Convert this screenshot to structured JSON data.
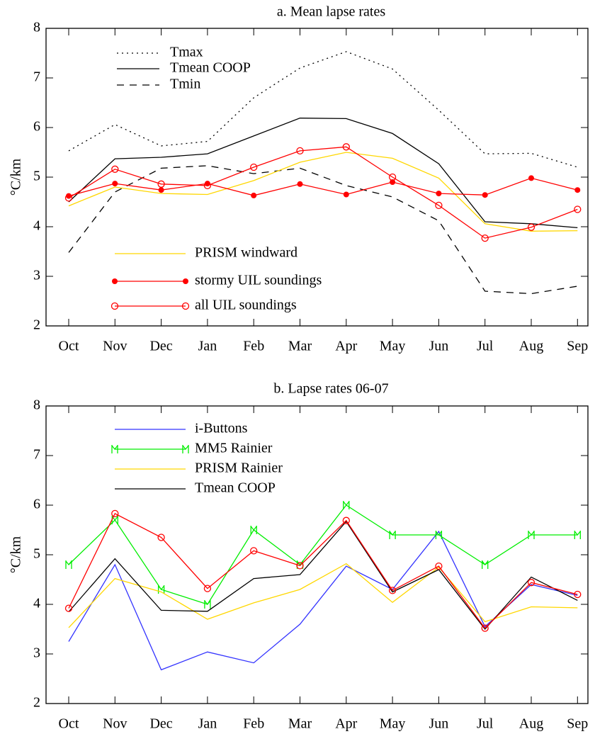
{
  "chart_data": [
    {
      "type": "line",
      "title": "a. Mean lapse rates",
      "ylabel": "°C/km",
      "categories": [
        "Oct",
        "Nov",
        "Dec",
        "Jan",
        "Feb",
        "Mar",
        "Apr",
        "May",
        "Jun",
        "Jul",
        "Aug",
        "Sep"
      ],
      "ylim": [
        2,
        8
      ],
      "yticks": [
        2,
        3,
        4,
        5,
        6,
        7,
        8
      ],
      "series": [
        {
          "name": "Tmax",
          "color": "#000000",
          "dash": "dotted",
          "values": [
            5.53,
            6.06,
            5.63,
            5.72,
            6.6,
            7.2,
            7.53,
            7.18,
            6.35,
            5.47,
            5.48,
            5.2
          ]
        },
        {
          "name": "Tmean COOP",
          "color": "#000000",
          "dash": "solid",
          "values": [
            4.5,
            5.37,
            5.4,
            5.47,
            5.83,
            6.19,
            6.18,
            5.88,
            5.27,
            4.1,
            4.06,
            3.98
          ]
        },
        {
          "name": "Tmin",
          "color": "#000000",
          "dash": "dashed",
          "values": [
            3.48,
            4.7,
            5.18,
            5.23,
            5.07,
            5.18,
            4.83,
            4.6,
            4.12,
            2.7,
            2.65,
            2.8
          ]
        },
        {
          "name": "PRISM windward",
          "color": "#ffd700",
          "dash": "solid",
          "values": [
            4.42,
            4.8,
            4.67,
            4.65,
            4.93,
            5.3,
            5.5,
            5.38,
            4.98,
            4.06,
            3.91,
            3.92
          ]
        },
        {
          "name": "stormy UIL soundings",
          "color": "#ff0000",
          "dash": "solid",
          "marker": "filled-circle",
          "values": [
            4.62,
            4.87,
            4.74,
            4.87,
            4.63,
            4.86,
            4.65,
            4.9,
            4.67,
            4.64,
            4.98,
            4.74
          ]
        },
        {
          "name": "all UIL soundings",
          "color": "#ff0000",
          "dash": "solid",
          "marker": "open-circle",
          "values": [
            4.58,
            5.16,
            4.86,
            4.83,
            5.2,
            5.53,
            5.61,
            5.0,
            4.43,
            3.77,
            3.99,
            4.35
          ]
        }
      ]
    },
    {
      "type": "line",
      "title": "b. Lapse rates 06-07",
      "ylabel": "°C/km",
      "categories": [
        "Oct",
        "Nov",
        "Dec",
        "Jan",
        "Feb",
        "Mar",
        "Apr",
        "May",
        "Jun",
        "Jul",
        "Aug",
        "Sep"
      ],
      "ylim": [
        2,
        8
      ],
      "yticks": [
        2,
        3,
        4,
        5,
        6,
        7,
        8
      ],
      "series": [
        {
          "name": "i-Buttons",
          "color": "#3333ff",
          "dash": "solid",
          "values": [
            3.25,
            4.8,
            2.68,
            3.04,
            2.82,
            3.6,
            4.77,
            4.3,
            5.47,
            3.55,
            4.4,
            4.18
          ]
        },
        {
          "name": "MM5 Rainier",
          "color": "#00ee00",
          "dash": "solid",
          "marker": "bracket",
          "values": [
            4.8,
            5.7,
            4.3,
            4.0,
            5.5,
            4.8,
            6.0,
            5.4,
            5.4,
            4.8,
            5.4,
            5.4
          ]
        },
        {
          "name": "PRISM Rainier",
          "color": "#ffd700",
          "dash": "solid",
          "values": [
            3.53,
            4.52,
            4.25,
            3.7,
            4.03,
            4.3,
            4.82,
            4.04,
            4.75,
            3.65,
            3.95,
            3.93
          ]
        },
        {
          "name": "Tmean COOP",
          "color": "#000000",
          "dash": "solid",
          "values": [
            3.85,
            4.92,
            3.88,
            3.86,
            4.52,
            4.6,
            5.67,
            4.25,
            4.7,
            3.5,
            4.55,
            4.08
          ]
        },
        {
          "color": "#ff0000",
          "dash": "solid",
          "marker": "open-circle",
          "values": [
            3.92,
            5.83,
            5.35,
            4.32,
            5.08,
            4.78,
            5.69,
            4.28,
            4.77,
            3.52,
            4.44,
            4.2
          ]
        }
      ]
    }
  ]
}
